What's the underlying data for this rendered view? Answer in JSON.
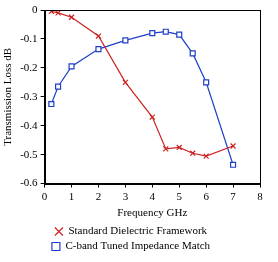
{
  "chart_data": {
    "type": "line",
    "x_label": "Frequency GHz",
    "y_label": "Transmission Loss dB",
    "x": [
      0.25,
      0.5,
      1,
      2,
      3,
      4,
      4.5,
      5,
      5.5,
      6,
      7
    ],
    "series": [
      {
        "name": "Standard Dielectric Framework",
        "color": "#cc2222",
        "marker": "x",
        "line_style": "solid",
        "values": [
          -0.005,
          -0.01,
          -0.025,
          -0.09,
          -0.25,
          -0.37,
          -0.48,
          -0.475,
          -0.495,
          -0.505,
          -0.47
        ]
      },
      {
        "name": "C-band Tuned Impedance Match",
        "color": "#1f3fc8",
        "marker": "square",
        "line_style": "solid",
        "values": [
          -0.325,
          -0.265,
          -0.195,
          -0.135,
          -0.105,
          -0.08,
          -0.075,
          -0.085,
          -0.15,
          -0.25,
          -0.535
        ]
      }
    ],
    "xlim": [
      0,
      8
    ],
    "xticks": [
      0,
      1,
      2,
      3,
      4,
      5,
      6,
      7,
      8
    ],
    "ylim": [
      -0.6,
      0
    ],
    "yticks": [
      -0.6,
      -0.5,
      -0.4,
      -0.3,
      -0.2,
      -0.1,
      0
    ],
    "grid": false,
    "legend": "bottom"
  }
}
